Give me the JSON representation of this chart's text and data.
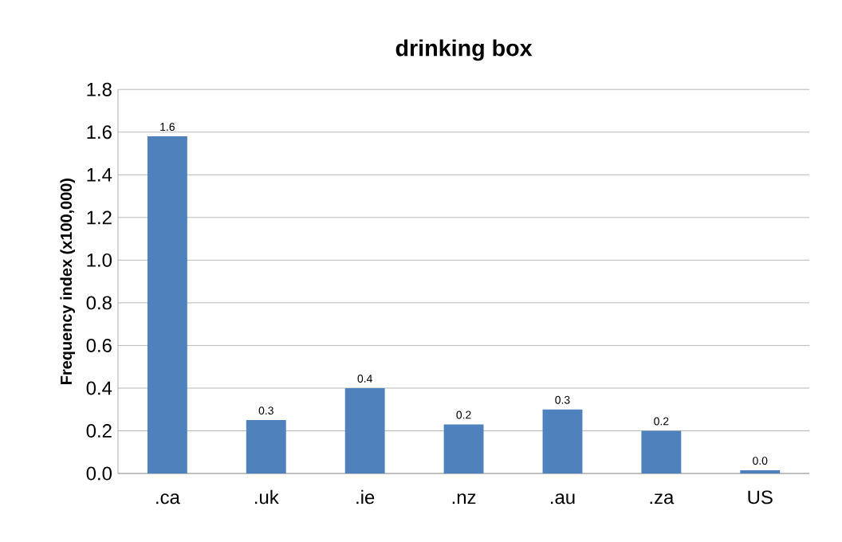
{
  "chart_data": {
    "type": "bar",
    "title": "drinking box",
    "ylabel": "Frequency index (x100,000)",
    "categories": [
      ".ca",
      ".uk",
      ".ie",
      ".nz",
      ".au",
      ".za",
      "US"
    ],
    "values": [
      1.58,
      0.25,
      0.4,
      0.23,
      0.3,
      0.2,
      0.015
    ],
    "value_labels": [
      "1.6",
      "0.3",
      "0.4",
      "0.2",
      "0.3",
      "0.2",
      "0.0"
    ],
    "color": "#4f81bd",
    "ylim": [
      0,
      1.8
    ],
    "yticks": [
      {
        "value": 0,
        "label": "0.0"
      },
      {
        "value": 0.2,
        "label": "0.2"
      },
      {
        "value": 0.4,
        "label": "0.4"
      },
      {
        "value": 0.6,
        "label": "0.6"
      },
      {
        "value": 0.8,
        "label": "0.8"
      },
      {
        "value": 1.0,
        "label": "1.0"
      },
      {
        "value": 1.2,
        "label": "1.2"
      },
      {
        "value": 1.4,
        "label": "1.4"
      },
      {
        "value": 1.6,
        "label": "1.6"
      },
      {
        "value": 1.8,
        "label": "1.8"
      }
    ],
    "grid": "y"
  }
}
